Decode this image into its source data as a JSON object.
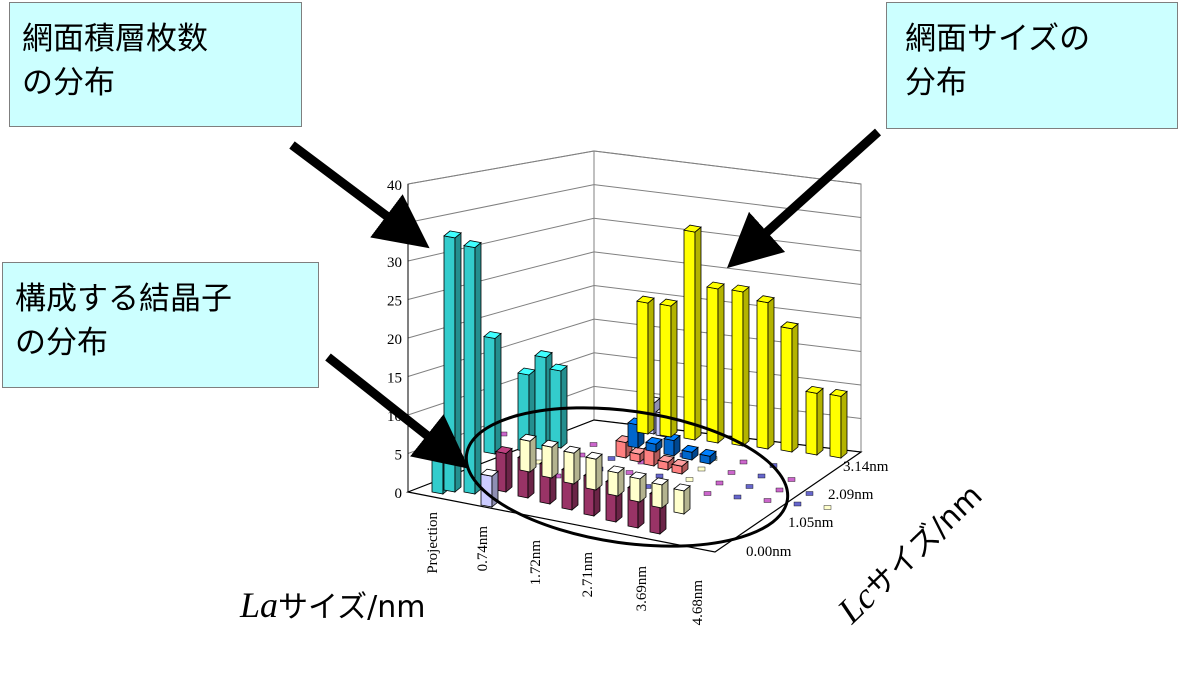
{
  "callouts": {
    "stack_line1": "網面積層枚数",
    "stack_line2": "の分布",
    "size_line1": "網面サイズの",
    "size_line2": "分布",
    "cryst_line1": "構成する結晶子",
    "cryst_line2": "の分布"
  },
  "axes": {
    "la_title_italic": "La",
    "la_title_rest": "サイズ/nm",
    "lc_title_italic": "Lc",
    "lc_title_rest": "サイズ/nm",
    "z_ticks": [
      "0",
      "5",
      "10",
      "15",
      "20",
      "25",
      "30",
      "35",
      "40"
    ],
    "la_ticks": [
      "Projection",
      "0.74nm",
      "1.72nm",
      "2.71nm",
      "3.69nm",
      "4.68nm"
    ],
    "lc_ticks": [
      "0.00nm",
      "1.05nm",
      "2.09nm",
      "3.14nm"
    ]
  },
  "chart_data": {
    "type": "bar",
    "subtype": "3d-bar",
    "zlim": [
      0,
      40
    ],
    "la_categories": [
      "Projection",
      "0.74nm",
      "1.72nm",
      "2.71nm",
      "3.69nm",
      "4.68nm"
    ],
    "lc_categories": [
      "0.00nm",
      "1.05nm",
      "2.09nm",
      "3.14nm"
    ],
    "lc_projection": {
      "color": "#33cccc",
      "values": [
        5,
        33,
        32,
        15,
        10,
        12,
        10
      ]
    },
    "la_projection": {
      "color": "#ffff00",
      "values": [
        17,
        17,
        27,
        20,
        20,
        19,
        16,
        8,
        8
      ]
    },
    "crystallite_bars": [
      {
        "color": "#993366",
        "values": [
          5,
          5,
          5,
          5,
          5,
          5,
          5,
          5
        ]
      },
      {
        "color": "#ffffcc",
        "values": [
          4,
          4,
          4,
          4,
          3,
          3,
          3,
          3
        ]
      },
      {
        "color": "#ff8080",
        "values": [
          2,
          1,
          2,
          1,
          1
        ]
      },
      {
        "color": "#0066cc",
        "values": [
          3,
          1,
          2,
          1,
          1
        ]
      },
      {
        "color": "#ccccff",
        "values": [
          4,
          3
        ]
      }
    ],
    "grid": true
  },
  "colors": {
    "callout_bg": "#ccffff",
    "cyan": "#33cccc",
    "yellow": "#ffff00",
    "purple": "#993366",
    "cream": "#ffffcc",
    "salmon": "#ff8080",
    "blue": "#0066cc",
    "lavender": "#ccccff"
  }
}
